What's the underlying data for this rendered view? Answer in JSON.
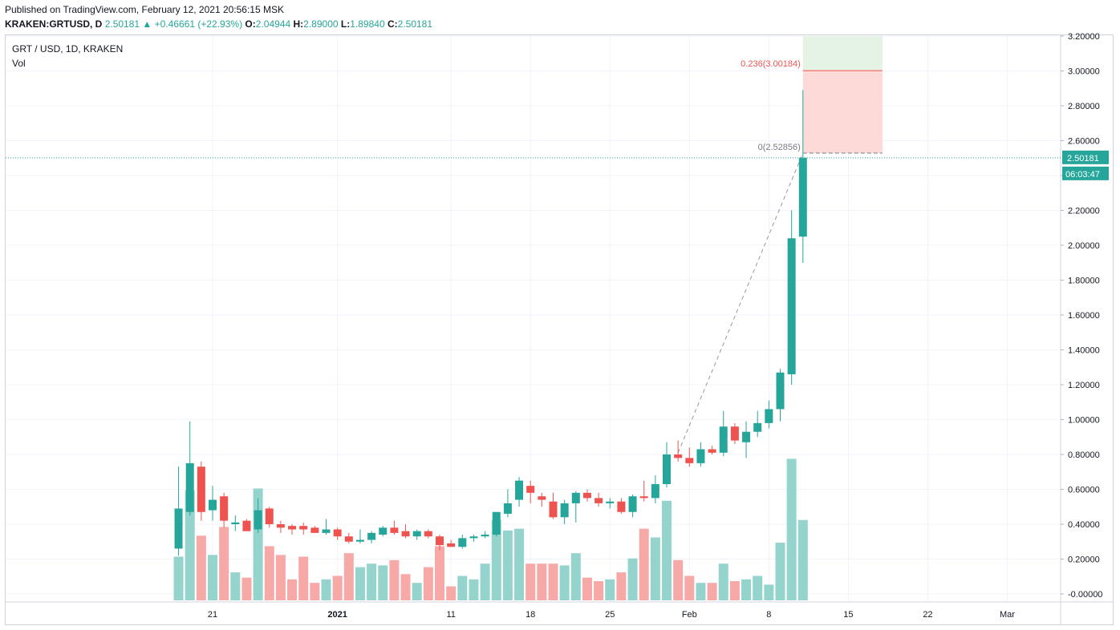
{
  "header": {
    "published": "Published on TradingView.com, February 12, 2021 20:56:15 MSK",
    "symbol": "KRAKEN:GRTUSD, D",
    "last": "2.50181",
    "change": "+0.46661 (+22.93%)",
    "o_label": "O:",
    "o_value": "2.04944",
    "h_label": "H:",
    "h_value": "2.89000",
    "l_label": "L:",
    "l_value": "1.89840",
    "c_label": "C:",
    "c_value": "2.50181"
  },
  "legend": {
    "title": "GRT / USD, 1D, KRAKEN",
    "vol": "Vol"
  },
  "colors": {
    "up": "#26a69a",
    "down": "#ef5350",
    "vol_up": "#94d4cd",
    "vol_down": "#f7a9a7",
    "grid": "#f0f3fa",
    "fib_red_fill": "#fdd9d7",
    "fib_green_fill": "#e4f3e4"
  },
  "price_labels": {
    "last": "2.50181",
    "countdown": "06:03:47"
  },
  "fib": [
    {
      "label": "0.236(3.00184)",
      "value": 3.00184
    },
    {
      "label": "0(2.52856)",
      "value": 2.52856
    }
  ],
  "chart_data": {
    "type": "candlestick",
    "title": "GRT / USD, 1D, KRAKEN",
    "x_ticks": [
      {
        "label": "21",
        "date": "2020-12-21"
      },
      {
        "label": "2021",
        "date": "2021-01-01",
        "bold": true
      },
      {
        "label": "11",
        "date": "2021-01-11"
      },
      {
        "label": "18",
        "date": "2021-01-18"
      },
      {
        "label": "25",
        "date": "2021-01-25"
      },
      {
        "label": "Feb",
        "date": "2021-02-01"
      },
      {
        "label": "8",
        "date": "2021-02-08"
      },
      {
        "label": "15",
        "date": "2021-02-15"
      },
      {
        "label": "22",
        "date": "2021-02-22"
      },
      {
        "label": "Mar",
        "date": "2021-03-01"
      }
    ],
    "y_ticks": [
      "3.20000",
      "3.00000",
      "2.80000",
      "2.60000",
      "2.40000",
      "2.20000",
      "2.00000",
      "1.80000",
      "1.60000",
      "1.40000",
      "1.20000",
      "1.00000",
      "0.80000",
      "0.60000",
      "0.40000",
      "0.20000",
      "-0.00000"
    ],
    "ylim": [
      -0.04,
      3.22
    ],
    "candles": [
      {
        "date": "2020-12-18",
        "o": 0.26,
        "h": 0.73,
        "l": 0.22,
        "c": 0.49,
        "v": 0.25
      },
      {
        "date": "2020-12-19",
        "o": 0.47,
        "h": 0.99,
        "l": 0.45,
        "c": 0.75,
        "v": 0.63
      },
      {
        "date": "2020-12-20",
        "o": 0.73,
        "h": 0.76,
        "l": 0.42,
        "c": 0.47,
        "v": 0.37
      },
      {
        "date": "2020-12-21",
        "o": 0.48,
        "h": 0.62,
        "l": 0.42,
        "c": 0.54,
        "v": 0.26
      },
      {
        "date": "2020-12-22",
        "o": 0.56,
        "h": 0.58,
        "l": 0.38,
        "c": 0.42,
        "v": 0.42
      },
      {
        "date": "2020-12-23",
        "o": 0.4,
        "h": 0.45,
        "l": 0.36,
        "c": 0.41,
        "v": 0.16
      },
      {
        "date": "2020-12-24",
        "o": 0.42,
        "h": 0.43,
        "l": 0.37,
        "c": 0.36,
        "v": 0.13
      },
      {
        "date": "2020-12-25",
        "o": 0.37,
        "h": 0.55,
        "l": 0.35,
        "c": 0.48,
        "v": 0.64
      },
      {
        "date": "2020-12-26",
        "o": 0.49,
        "h": 0.5,
        "l": 0.38,
        "c": 0.4,
        "v": 0.31
      },
      {
        "date": "2020-12-27",
        "o": 0.4,
        "h": 0.42,
        "l": 0.35,
        "c": 0.38,
        "v": 0.26
      },
      {
        "date": "2020-12-28",
        "o": 0.39,
        "h": 0.4,
        "l": 0.34,
        "c": 0.37,
        "v": 0.12
      },
      {
        "date": "2020-12-29",
        "o": 0.39,
        "h": 0.41,
        "l": 0.34,
        "c": 0.37,
        "v": 0.25
      },
      {
        "date": "2020-12-30",
        "o": 0.38,
        "h": 0.39,
        "l": 0.35,
        "c": 0.35,
        "v": 0.1
      },
      {
        "date": "2020-12-31",
        "o": 0.35,
        "h": 0.43,
        "l": 0.34,
        "c": 0.37,
        "v": 0.12
      },
      {
        "date": "2021-01-01",
        "o": 0.37,
        "h": 0.38,
        "l": 0.31,
        "c": 0.33,
        "v": 0.14
      },
      {
        "date": "2021-01-02",
        "o": 0.33,
        "h": 0.35,
        "l": 0.29,
        "c": 0.3,
        "v": 0.27
      },
      {
        "date": "2021-01-03",
        "o": 0.3,
        "h": 0.37,
        "l": 0.29,
        "c": 0.31,
        "v": 0.19
      },
      {
        "date": "2021-01-04",
        "o": 0.31,
        "h": 0.36,
        "l": 0.29,
        "c": 0.35,
        "v": 0.21
      },
      {
        "date": "2021-01-05",
        "o": 0.34,
        "h": 0.39,
        "l": 0.33,
        "c": 0.38,
        "v": 0.2
      },
      {
        "date": "2021-01-06",
        "o": 0.38,
        "h": 0.42,
        "l": 0.34,
        "c": 0.35,
        "v": 0.23
      },
      {
        "date": "2021-01-07",
        "o": 0.36,
        "h": 0.4,
        "l": 0.32,
        "c": 0.33,
        "v": 0.15
      },
      {
        "date": "2021-01-08",
        "o": 0.33,
        "h": 0.37,
        "l": 0.31,
        "c": 0.36,
        "v": 0.1
      },
      {
        "date": "2021-01-09",
        "o": 0.36,
        "h": 0.37,
        "l": 0.32,
        "c": 0.33,
        "v": 0.19
      },
      {
        "date": "2021-01-10",
        "o": 0.33,
        "h": 0.34,
        "l": 0.25,
        "c": 0.28,
        "v": 0.31
      },
      {
        "date": "2021-01-11",
        "o": 0.29,
        "h": 0.31,
        "l": 0.27,
        "c": 0.27,
        "v": 0.08
      },
      {
        "date": "2021-01-12",
        "o": 0.27,
        "h": 0.34,
        "l": 0.26,
        "c": 0.32,
        "v": 0.14
      },
      {
        "date": "2021-01-13",
        "o": 0.32,
        "h": 0.34,
        "l": 0.3,
        "c": 0.33,
        "v": 0.12
      },
      {
        "date": "2021-01-14",
        "o": 0.33,
        "h": 0.36,
        "l": 0.32,
        "c": 0.34,
        "v": 0.21
      },
      {
        "date": "2021-01-15",
        "o": 0.34,
        "h": 0.44,
        "l": 0.33,
        "c": 0.47,
        "v": 0.46
      },
      {
        "date": "2021-01-16",
        "o": 0.46,
        "h": 0.6,
        "l": 0.44,
        "c": 0.52,
        "v": 0.4
      },
      {
        "date": "2021-01-17",
        "o": 0.54,
        "h": 0.67,
        "l": 0.5,
        "c": 0.65,
        "v": 0.41
      },
      {
        "date": "2021-01-18",
        "o": 0.62,
        "h": 0.65,
        "l": 0.52,
        "c": 0.58,
        "v": 0.21
      },
      {
        "date": "2021-01-19",
        "o": 0.56,
        "h": 0.58,
        "l": 0.5,
        "c": 0.54,
        "v": 0.21
      },
      {
        "date": "2021-01-20",
        "o": 0.53,
        "h": 0.58,
        "l": 0.43,
        "c": 0.44,
        "v": 0.21
      },
      {
        "date": "2021-01-21",
        "o": 0.44,
        "h": 0.54,
        "l": 0.4,
        "c": 0.52,
        "v": 0.2
      },
      {
        "date": "2021-01-22",
        "o": 0.52,
        "h": 0.59,
        "l": 0.41,
        "c": 0.58,
        "v": 0.27
      },
      {
        "date": "2021-01-23",
        "o": 0.58,
        "h": 0.6,
        "l": 0.53,
        "c": 0.55,
        "v": 0.13
      },
      {
        "date": "2021-01-24",
        "o": 0.55,
        "h": 0.58,
        "l": 0.5,
        "c": 0.52,
        "v": 0.11
      },
      {
        "date": "2021-01-25",
        "o": 0.52,
        "h": 0.55,
        "l": 0.49,
        "c": 0.53,
        "v": 0.12
      },
      {
        "date": "2021-01-26",
        "o": 0.53,
        "h": 0.55,
        "l": 0.46,
        "c": 0.47,
        "v": 0.16
      },
      {
        "date": "2021-01-27",
        "o": 0.47,
        "h": 0.57,
        "l": 0.44,
        "c": 0.56,
        "v": 0.24
      },
      {
        "date": "2021-01-28",
        "o": 0.56,
        "h": 0.65,
        "l": 0.53,
        "c": 0.55,
        "v": 0.41
      },
      {
        "date": "2021-01-29",
        "o": 0.55,
        "h": 0.68,
        "l": 0.52,
        "c": 0.63,
        "v": 0.36
      },
      {
        "date": "2021-01-30",
        "o": 0.63,
        "h": 0.87,
        "l": 0.61,
        "c": 0.8,
        "v": 0.57
      },
      {
        "date": "2021-01-31",
        "o": 0.8,
        "h": 0.88,
        "l": 0.76,
        "c": 0.78,
        "v": 0.23
      },
      {
        "date": "2021-02-01",
        "o": 0.78,
        "h": 0.84,
        "l": 0.73,
        "c": 0.75,
        "v": 0.14
      },
      {
        "date": "2021-02-02",
        "o": 0.75,
        "h": 0.87,
        "l": 0.73,
        "c": 0.83,
        "v": 0.1
      },
      {
        "date": "2021-02-03",
        "o": 0.83,
        "h": 0.85,
        "l": 0.8,
        "c": 0.81,
        "v": 0.1
      },
      {
        "date": "2021-02-04",
        "o": 0.81,
        "h": 1.05,
        "l": 0.79,
        "c": 0.96,
        "v": 0.21
      },
      {
        "date": "2021-02-05",
        "o": 0.96,
        "h": 0.98,
        "l": 0.86,
        "c": 0.88,
        "v": 0.11
      },
      {
        "date": "2021-02-06",
        "o": 0.87,
        "h": 0.99,
        "l": 0.78,
        "c": 0.93,
        "v": 0.12
      },
      {
        "date": "2021-02-07",
        "o": 0.93,
        "h": 1.05,
        "l": 0.9,
        "c": 0.98,
        "v": 0.14
      },
      {
        "date": "2021-02-08",
        "o": 0.98,
        "h": 1.11,
        "l": 0.95,
        "c": 1.06,
        "v": 0.09
      },
      {
        "date": "2021-02-09",
        "o": 1.06,
        "h": 1.29,
        "l": 0.99,
        "c": 1.27,
        "v": 0.33
      },
      {
        "date": "2021-02-10",
        "o": 1.26,
        "h": 2.2,
        "l": 1.2,
        "c": 2.04,
        "v": 0.81
      },
      {
        "date": "2021-02-11",
        "o": 2.04944,
        "h": 2.89,
        "l": 1.8984,
        "c": 2.50181,
        "v": 0.46
      }
    ],
    "trend_line": {
      "from": {
        "date": "2021-01-31",
        "price": 0.81
      },
      "to": {
        "date": "2021-02-11",
        "price": 2.52856
      }
    },
    "fib_range": {
      "from_date": "2021-02-11",
      "to_date": "2021-02-18",
      "levels": [
        2.52856,
        3.00184,
        3.2
      ]
    }
  }
}
